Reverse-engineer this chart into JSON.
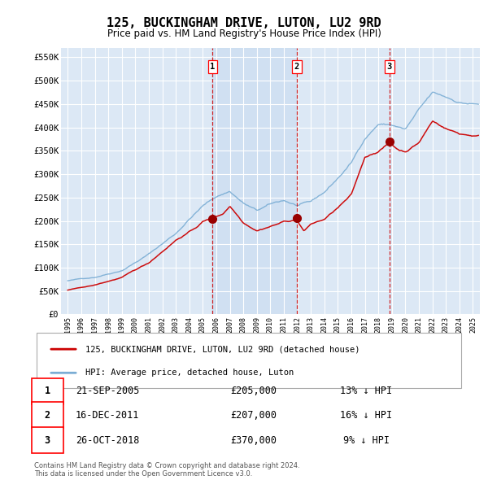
{
  "title": "125, BUCKINGHAM DRIVE, LUTON, LU2 9RD",
  "subtitle": "Price paid vs. HM Land Registry's House Price Index (HPI)",
  "legend_red": "125, BUCKINGHAM DRIVE, LUTON, LU2 9RD (detached house)",
  "legend_blue": "HPI: Average price, detached house, Luton",
  "sales": [
    {
      "label": "1",
      "date_str": "21-SEP-2005",
      "price": 205000,
      "hpi_diff": "13% ↓ HPI",
      "x_year": 2005.72
    },
    {
      "label": "2",
      "date_str": "16-DEC-2011",
      "price": 207000,
      "hpi_diff": "16% ↓ HPI",
      "x_year": 2011.96
    },
    {
      "label": "3",
      "date_str": "26-OCT-2018",
      "price": 370000,
      "hpi_diff": "9% ↓ HPI",
      "x_year": 2018.82
    }
  ],
  "footer": "Contains HM Land Registry data © Crown copyright and database right 2024.\nThis data is licensed under the Open Government Licence v3.0.",
  "ylim": [
    0,
    570000
  ],
  "xlim": [
    1994.5,
    2025.5
  ],
  "yticks": [
    0,
    50000,
    100000,
    150000,
    200000,
    250000,
    300000,
    350000,
    400000,
    450000,
    500000,
    550000
  ],
  "ytick_labels": [
    "£0",
    "£50K",
    "£100K",
    "£150K",
    "£200K",
    "£250K",
    "£300K",
    "£350K",
    "£400K",
    "£450K",
    "£500K",
    "£550K"
  ],
  "background_color": "#ffffff",
  "plot_bg_color": "#dce8f5",
  "grid_color": "#ffffff",
  "red_color": "#cc0000",
  "blue_color": "#7aadd4",
  "shade_color": "#c8dcf0"
}
